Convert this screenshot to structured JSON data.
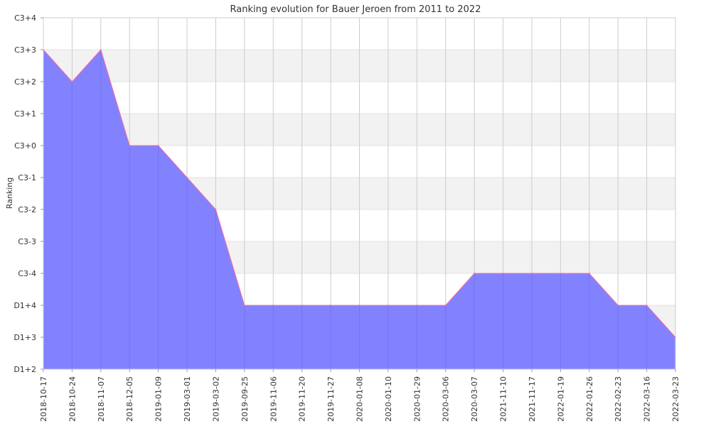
{
  "chart_data": {
    "type": "area",
    "title": "Ranking evolution for Bauer Jeroen from 2011 to 2022",
    "xlabel": "",
    "ylabel": "Ranking",
    "categories": [
      "2018-10-17",
      "2018-10-24",
      "2018-11-07",
      "2018-12-05",
      "2019-01-09",
      "2019-03-01",
      "2019-03-02",
      "2019-09-25",
      "2019-11-06",
      "2019-11-20",
      "2019-11-27",
      "2020-01-08",
      "2020-01-10",
      "2020-01-29",
      "2020-03-06",
      "2020-03-07",
      "2021-11-10",
      "2021-11-17",
      "2022-01-19",
      "2022-01-26",
      "2022-02-23",
      "2022-03-16",
      "2022-03-23"
    ],
    "y_ticks": [
      "D1+2",
      "D1+3",
      "D1+4",
      "C3-4",
      "C3-3",
      "C3-2",
      "C3-1",
      "C3+0",
      "C3+1",
      "C3+2",
      "C3+3",
      "C3+4"
    ],
    "series": [
      {
        "values": [
          "C3+3",
          "C3+2",
          "C3+3",
          "C3+0",
          "C3+0",
          "C3-1",
          "C3-2",
          "D1+4",
          "D1+4",
          "D1+4",
          "D1+4",
          "D1+4",
          "D1+4",
          "D1+4",
          "D1+4",
          "C3-4",
          "C3-4",
          "C3-4",
          "C3-4",
          "C3-4",
          "D1+4",
          "D1+4",
          "D1+3"
        ]
      }
    ],
    "grid": true,
    "legend": "none",
    "colors": {
      "fill": "#7b7bff",
      "line": "#ff6b9d",
      "band": "#f2f2f2",
      "grid": "#cccccc"
    }
  }
}
